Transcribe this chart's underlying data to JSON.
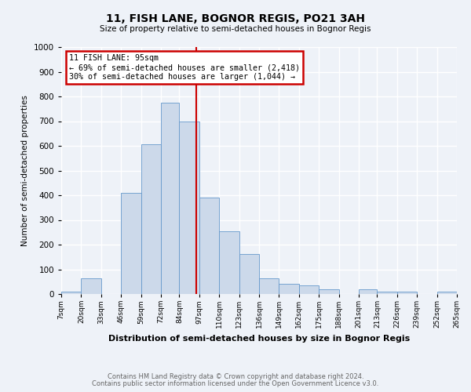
{
  "title": "11, FISH LANE, BOGNOR REGIS, PO21 3AH",
  "subtitle": "Size of property relative to semi-detached houses in Bognor Regis",
  "xlabel": "Distribution of semi-detached houses by size in Bognor Regis",
  "ylabel": "Number of semi-detached properties",
  "footer1": "Contains HM Land Registry data © Crown copyright and database right 2024.",
  "footer2": "Contains public sector information licensed under the Open Government Licence v3.0.",
  "bin_labels": [
    "7sqm",
    "20sqm",
    "33sqm",
    "46sqm",
    "59sqm",
    "72sqm",
    "84sqm",
    "97sqm",
    "110sqm",
    "123sqm",
    "136sqm",
    "149sqm",
    "162sqm",
    "175sqm",
    "188sqm",
    "201sqm",
    "213sqm",
    "226sqm",
    "239sqm",
    "252sqm",
    "265sqm"
  ],
  "bar_values": [
    8,
    65,
    0,
    408,
    607,
    775,
    700,
    390,
    255,
    163,
    65,
    42,
    35,
    18,
    0,
    18,
    8,
    8,
    0,
    8
  ],
  "bar_color": "#ccd9ea",
  "bar_edge_color": "#6699cc",
  "property_line_x": 95,
  "property_line_label": "11 FISH LANE: 95sqm",
  "annotation_line1": "← 69% of semi-detached houses are smaller (2,418)",
  "annotation_line2": "30% of semi-detached houses are larger (1,044) →",
  "annotation_box_color": "#ffffff",
  "annotation_box_edge": "#cc0000",
  "vline_color": "#cc0000",
  "bg_color": "#eef2f8",
  "grid_color": "#ffffff",
  "ylim": [
    0,
    1000
  ],
  "yticks": [
    0,
    100,
    200,
    300,
    400,
    500,
    600,
    700,
    800,
    900,
    1000
  ]
}
